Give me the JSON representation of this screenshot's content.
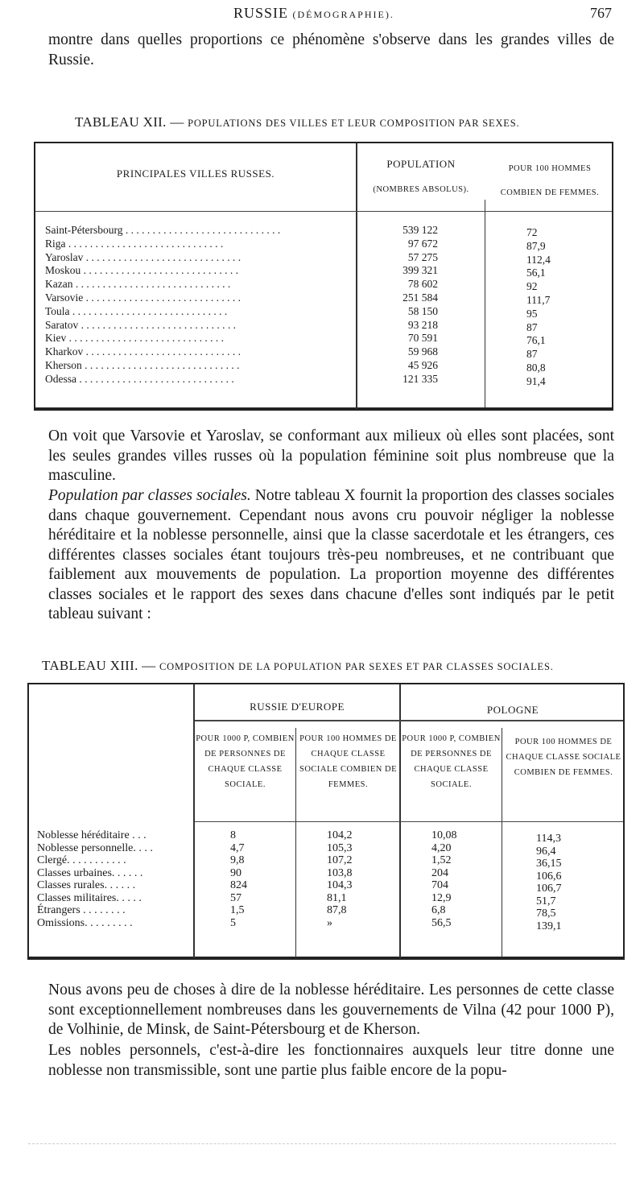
{
  "header": {
    "title": "RUSSIE",
    "subtitle": "(DÉMOGRAPHIE).",
    "page_number": "767"
  },
  "intro": "montre dans quelles proportions ce phénomène s'observe dans les grandes villes de Russie.",
  "table12": {
    "caption_prefix": "TABLEAU XII. — ",
    "caption": "Populations des villes et leur composition par sexes.",
    "col_city": "PRINCIPALES VILLES RUSSES.",
    "col_pop": "POPULATION",
    "col_pop_sub": "(NOMBRES ABSOLUS).",
    "col_ratio": "POUR 100 HOMMES",
    "col_ratio_sub": "COMBIEN DE FEMMES.",
    "rows": [
      {
        "city": "Saint-Pétersbourg",
        "pop": "539 122",
        "ratio": "72"
      },
      {
        "city": "Riga",
        "pop": "97 672",
        "ratio": "87,9"
      },
      {
        "city": "Yaroslav",
        "pop": "57 275",
        "ratio": "112,4"
      },
      {
        "city": "Moskou",
        "pop": "399 321",
        "ratio": "56,1"
      },
      {
        "city": "Kazan",
        "pop": "78 602",
        "ratio": "92"
      },
      {
        "city": "Varsovie",
        "pop": "251 584",
        "ratio": "111,7"
      },
      {
        "city": "Toula",
        "pop": "58 150",
        "ratio": "95"
      },
      {
        "city": "Saratov",
        "pop": "93 218",
        "ratio": "87"
      },
      {
        "city": "Kiev",
        "pop": "70 591",
        "ratio": "76,1"
      },
      {
        "city": "Kharkov",
        "pop": "59 968",
        "ratio": "87"
      },
      {
        "city": "Kherson",
        "pop": "45 926",
        "ratio": "80,8"
      },
      {
        "city": "Odessa",
        "pop": "121 335",
        "ratio": "91,4"
      }
    ]
  },
  "para1": "On voit que Varsovie et Yaroslav, se conformant aux milieux où elles sont placées, sont les seules grandes villes russes où la population féminine soit plus nombreuse que la masculine.",
  "para2_title": "Population par classes sociales.",
  "para2": " Notre tableau X fournit la proportion des classes sociales dans chaque gouvernement. Cependant nous avons cru pouvoir négliger la noblesse héréditaire et la noblesse personnelle, ainsi que la classe sacerdotale et les étrangers, ces différentes classes sociales étant toujours très-peu nombreuses, et ne contribuant que faiblement aux mouvements de population. La proportion moyenne des différentes classes sociales et le rapport des sexes dans chacune d'elles sont indiqués par le petit tableau suivant :",
  "table13": {
    "caption_prefix": "TABLEAU XIII. — ",
    "caption": "Composition de la population par sexes et par classes sociales.",
    "group1": "RUSSIE D'EUROPE",
    "group2": "POLOGNE",
    "col_a": "POUR 1000 P, COMBIEN DE PERSONNES DE CHAQUE CLASSE SOCIALE.",
    "col_b": "POUR 100 HOMMES DE CHAQUE CLASSE SOCIALE COMBIEN DE FEMMES.",
    "col_c": "POUR 1000 P, COMBIEN DE PERSONNES DE CHAQUE CLASSE SOCIALE.",
    "col_d": "POUR 100 HOMMES DE CHAQUE CLASSE SOCIALE COMBIEN DE FEMMES.",
    "rows": [
      {
        "label": "Noblesse héréditaire . . .",
        "a": "8",
        "b": "104,2",
        "c": "10,08",
        "d": "114,3"
      },
      {
        "label": "Noblesse personnelle. . . .",
        "a": "4,7",
        "b": "105,3",
        "c": "4,20",
        "d": "96,4"
      },
      {
        "label": "Clergé. . . . . . . . . . .",
        "a": "9,8",
        "b": "107,2",
        "c": "1,52",
        "d": "36,15"
      },
      {
        "label": "Classes urbaines. . . . . .",
        "a": "90",
        "b": "103,8",
        "c": "204",
        "d": "106,6"
      },
      {
        "label": "Classes rurales. . . . . .",
        "a": "824",
        "b": "104,3",
        "c": "704",
        "d": "106,7"
      },
      {
        "label": "Classes militaires. . . . .",
        "a": "57",
        "b": "81,1",
        "c": "12,9",
        "d": "51,7"
      },
      {
        "label": "Étrangers . . . . . . . .",
        "a": "1,5",
        "b": "87,8",
        "c": "6,8",
        "d": "78,5"
      },
      {
        "label": "Omissions. . . . . . . . .",
        "a": "5",
        "b": "»",
        "c": "56,5",
        "d": "139,1"
      }
    ]
  },
  "para3": "Nous avons peu de choses à dire de la noblesse héréditaire. Les personnes de cette classe sont exceptionnellement nombreuses dans les gouvernements de Vilna (42 pour 1000 P), de Volhinie, de Minsk, de Saint-Pétersbourg et de Kherson.",
  "para4": "Les nobles personnels, c'est-à-dire les fonctionnaires auxquels leur titre donne une noblesse non transmissible, sont une partie plus faible encore de la popu-"
}
